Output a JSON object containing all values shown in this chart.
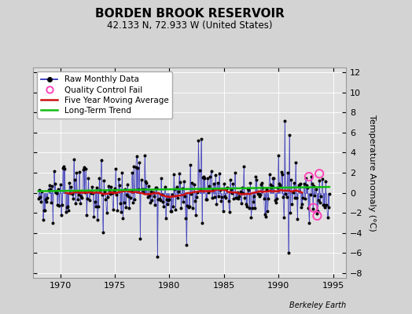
{
  "title": "BORDEN BROOK RESERVOIR",
  "subtitle": "42.133 N, 72.933 W (United States)",
  "ylabel": "Temperature Anomaly (°C)",
  "credit": "Berkeley Earth",
  "xlim": [
    1967.5,
    1996.2
  ],
  "ylim": [
    -8.5,
    12.5
  ],
  "yticks": [
    -8,
    -6,
    -4,
    -2,
    0,
    2,
    4,
    6,
    8,
    10,
    12
  ],
  "xticks": [
    1970,
    1975,
    1980,
    1985,
    1990,
    1995
  ],
  "bg_color": "#d3d3d3",
  "plot_bg_color": "#e0e0e0",
  "raw_color": "#3333bb",
  "dot_color": "#000000",
  "qc_color": "#ff44bb",
  "ma_color": "#cc1111",
  "trend_color": "#11bb11",
  "legend_raw": "Raw Monthly Data",
  "legend_qc": "Quality Control Fail",
  "legend_ma": "Five Year Moving Average",
  "legend_trend": "Long-Term Trend",
  "title_fontsize": 11,
  "subtitle_fontsize": 8.5,
  "ylabel_fontsize": 8,
  "tick_fontsize": 8,
  "legend_fontsize": 7.5,
  "credit_fontsize": 7
}
